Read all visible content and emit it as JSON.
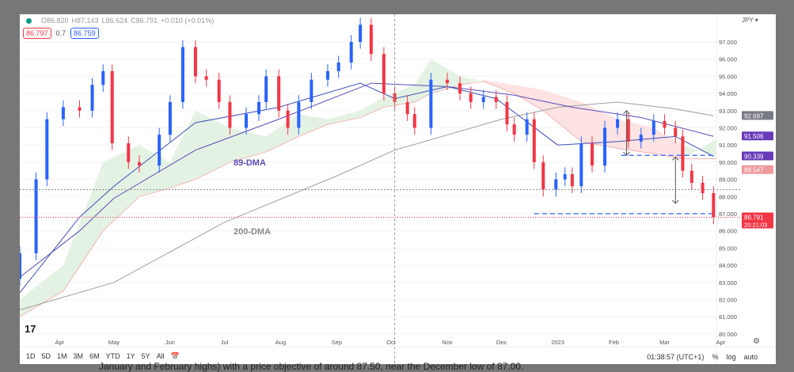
{
  "legend": {
    "o": "O86.820",
    "h": "H87.143",
    "l": "L86.624",
    "c": "C86.791",
    "chg": "+0.010 (+0.01%)",
    "ma_a": "86.797",
    "ma_n": "0.7",
    "ma_b": "86.759"
  },
  "axis": {
    "currency": "JPY ▾",
    "time_labels": [
      "Apr",
      "May",
      "Jun",
      "Jul",
      "Aug",
      "Sep",
      "Oct",
      "Nov",
      "Dec",
      "2023",
      "Feb",
      "Mar",
      "Apr"
    ]
  },
  "toolbar": {
    "timeframes": [
      "1D",
      "5D",
      "1M",
      "3M",
      "6M",
      "YTD",
      "1Y",
      "5Y",
      "All"
    ],
    "clock": "01:38:57 (UTC+1)",
    "percent": "%",
    "log": "log",
    "auto": "auto"
  },
  "footer_text": "January and February highs) with a price objective of around 87.50, near the December low of 87.00.",
  "colors": {
    "up": "#2962ff",
    "down": "#f23645",
    "ma89": "#5b4bb7",
    "ma200": "#9e9e9e",
    "ma_short": "#3f51b5",
    "cloud_up": "#e4f2e4",
    "cloud_down": "#fde3e3"
  },
  "chart_data": {
    "type": "candlestick",
    "ylim": [
      80,
      97
    ],
    "yticks": [
      97,
      96,
      95,
      94,
      93,
      92,
      91,
      90,
      89,
      88,
      87,
      86,
      85,
      84,
      83,
      82,
      81,
      80
    ],
    "xlim": [
      "2022-03-10",
      "2023-04-10"
    ],
    "closes": [
      [
        "2022-03-10",
        84.7
      ],
      [
        "2022-03-19",
        89
      ],
      [
        "2022-03-25",
        92.5
      ],
      [
        "2022-04-03",
        93.2
      ],
      [
        "2022-04-12",
        93
      ],
      [
        "2022-04-19",
        94.5
      ],
      [
        "2022-04-25",
        95.3
      ],
      [
        "2022-04-30",
        91.1
      ],
      [
        "2022-05-09",
        90
      ],
      [
        "2022-05-15",
        89.8
      ],
      [
        "2022-05-26",
        91.6
      ],
      [
        "2022-06-01",
        93.5
      ],
      [
        "2022-06-08",
        96.7
      ],
      [
        "2022-06-15",
        95
      ],
      [
        "2022-06-21",
        94.8
      ],
      [
        "2022-06-28",
        93.5
      ],
      [
        "2022-07-04",
        92
      ],
      [
        "2022-07-13",
        92.8
      ],
      [
        "2022-07-20",
        93.5
      ],
      [
        "2022-07-24",
        95
      ],
      [
        "2022-07-31",
        93
      ],
      [
        "2022-08-05",
        92
      ],
      [
        "2022-08-11",
        93.5
      ],
      [
        "2022-08-18",
        94.8
      ],
      [
        "2022-08-27",
        95.3
      ],
      [
        "2022-09-02",
        95.8
      ],
      [
        "2022-09-09",
        97
      ],
      [
        "2022-09-14",
        98
      ],
      [
        "2022-09-20",
        96.3
      ],
      [
        "2022-09-27",
        94
      ],
      [
        "2022-10-03",
        93.5
      ],
      [
        "2022-10-10",
        92.8
      ],
      [
        "2022-10-14",
        92
      ],
      [
        "2022-10-23",
        94.8
      ],
      [
        "2022-11-01",
        94.6
      ],
      [
        "2022-11-08",
        94
      ],
      [
        "2022-11-14",
        93.5
      ],
      [
        "2022-11-21",
        93.8
      ],
      [
        "2022-11-28",
        93.5
      ],
      [
        "2022-12-04",
        92.2
      ],
      [
        "2022-12-08",
        91.6
      ],
      [
        "2022-12-15",
        92.5
      ],
      [
        "2022-12-19",
        90
      ],
      [
        "2022-12-24",
        88.4
      ],
      [
        "2022-12-31",
        89
      ],
      [
        "2023-01-05",
        89.3
      ],
      [
        "2023-01-09",
        88.6
      ],
      [
        "2023-01-14",
        91.1
      ],
      [
        "2023-01-20",
        89.8
      ],
      [
        "2023-01-27",
        92
      ],
      [
        "2023-02-03",
        92.5
      ],
      [
        "2023-02-09",
        91.2
      ],
      [
        "2023-02-16",
        91.6
      ],
      [
        "2023-02-23",
        92.4
      ],
      [
        "2023-03-01",
        92
      ],
      [
        "2023-03-07",
        91.5
      ],
      [
        "2023-03-11",
        89.5
      ],
      [
        "2023-03-16",
        88.8
      ],
      [
        "2023-03-22",
        88.2
      ],
      [
        "2023-03-28",
        86.79
      ]
    ],
    "ma200": [
      [
        "2022-03-10",
        81.4
      ],
      [
        "2022-05-01",
        83
      ],
      [
        "2022-07-01",
        86.5
      ],
      [
        "2022-09-01",
        89.2
      ],
      [
        "2022-10-03",
        90.7
      ],
      [
        "2022-12-01",
        92.5
      ],
      [
        "2023-01-01",
        93.2
      ],
      [
        "2023-02-03",
        93.5
      ],
      [
        "2023-03-07",
        93.1
      ],
      [
        "2023-03-28",
        92.697
      ]
    ],
    "ma89": [
      [
        "2022-03-10",
        83.3
      ],
      [
        "2022-04-12",
        86
      ],
      [
        "2022-05-01",
        87.9
      ],
      [
        "2022-06-15",
        90.7
      ],
      [
        "2022-07-31",
        92.5
      ],
      [
        "2022-09-20",
        94.6
      ],
      [
        "2022-11-01",
        94.4
      ],
      [
        "2022-12-08",
        93.9
      ],
      [
        "2023-01-09",
        93.2
      ],
      [
        "2023-02-16",
        92.6
      ],
      [
        "2023-03-28",
        91.506
      ]
    ],
    "ma_short": [
      [
        "2022-03-10",
        82.4
      ],
      [
        "2022-04-12",
        86.8
      ],
      [
        "2022-05-01",
        88.6
      ],
      [
        "2022-06-15",
        92.3
      ],
      [
        "2022-07-31",
        93.2
      ],
      [
        "2022-09-14",
        94.6
      ],
      [
        "2022-10-03",
        93.7
      ],
      [
        "2022-11-01",
        94.4
      ],
      [
        "2022-11-28",
        93.7
      ],
      [
        "2023-01-01",
        91
      ],
      [
        "2023-02-03",
        91.2
      ],
      [
        "2023-03-07",
        91.5
      ],
      [
        "2023-03-28",
        90.339
      ]
    ],
    "cloud": [
      [
        "2022-03-10",
        82,
        81
      ],
      [
        "2022-04-03",
        84,
        82.5
      ],
      [
        "2022-04-25",
        90,
        86
      ],
      [
        "2022-05-15",
        91,
        88
      ],
      [
        "2022-06-01",
        90,
        88.5
      ],
      [
        "2022-06-15",
        93,
        89
      ],
      [
        "2022-07-04",
        92,
        90
      ],
      [
        "2022-07-24",
        91.5,
        90.6
      ],
      [
        "2022-08-11",
        92.8,
        91.5
      ],
      [
        "2022-08-27",
        92.5,
        92.2
      ],
      [
        "2022-09-14",
        93,
        92.6
      ],
      [
        "2022-09-27",
        93.8,
        93.2
      ],
      [
        "2022-10-14",
        94.5,
        93.5
      ],
      [
        "2022-10-23",
        96,
        94
      ],
      [
        "2022-11-08",
        95,
        94.5
      ],
      [
        "2022-11-21",
        94.7,
        94.8
      ],
      [
        "2022-12-08",
        94,
        94.5
      ],
      [
        "2022-12-24",
        93,
        94.2
      ],
      [
        "2023-01-14",
        91.2,
        93.5
      ],
      [
        "2023-02-03",
        90.8,
        92.5
      ],
      [
        "2023-02-23",
        90.5,
        92
      ],
      [
        "2023-03-11",
        90.2,
        91
      ],
      [
        "2023-04-01",
        91.5,
        90.2
      ],
      [
        "2023-04-10",
        91.8,
        90
      ]
    ],
    "price_labels": [
      {
        "value": 92.697,
        "text": "92.697",
        "color": "#787b86"
      },
      {
        "value": 91.506,
        "text": "91.506",
        "color": "#673ab7"
      },
      {
        "value": 90.339,
        "text": "90.339",
        "color": "#673ab7"
      },
      {
        "value": 89.547,
        "text": "89.547",
        "color": "#ef9a9a"
      },
      {
        "value": 86.791,
        "text": "86.791",
        "sub": "20:21:03",
        "color": "#f23645"
      }
    ],
    "levels": [
      {
        "value": 90.4,
        "from": "2023-02-05",
        "style": "blue-dash"
      },
      {
        "value": 87.0,
        "from": "2022-12-19",
        "style": "blue-dash"
      },
      {
        "value": 88.4,
        "style": "gray-dot"
      },
      {
        "value": 86.791,
        "style": "red-dot"
      }
    ],
    "arrows": [
      {
        "date": "2023-02-08",
        "from": 93,
        "to": 90.4
      },
      {
        "date": "2023-03-07",
        "from": 90.3,
        "to": 87.6
      }
    ],
    "crosshair_date": "2022-10-03",
    "annotations": [
      {
        "text": "89-DMA",
        "date": "2022-07-06",
        "value": 89.8,
        "color": "#5b4bb7"
      },
      {
        "text": "200-DMA",
        "date": "2022-07-06",
        "value": 85.8,
        "color": "#888"
      }
    ]
  }
}
